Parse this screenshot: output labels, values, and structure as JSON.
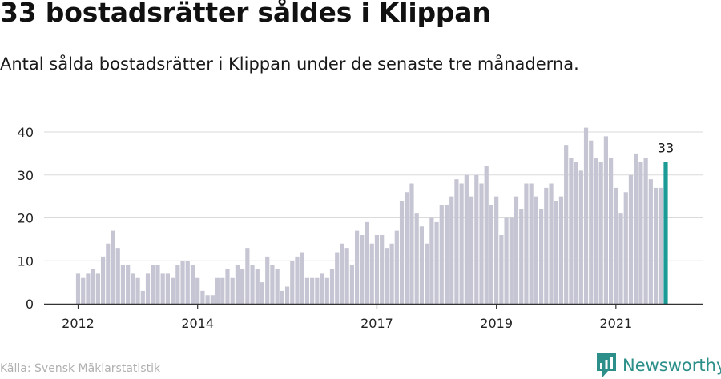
{
  "header": {
    "title": "33 bostadsrätter såldes i Klippan",
    "subtitle": "Antal sålda bostadsrätter i Klippan under de senaste tre månaderna."
  },
  "footer": {
    "source": "Källa: Svensk Mäklarstatistik",
    "brand": "Newsworthy"
  },
  "colors": {
    "bar": "#c6c5d3",
    "highlight": "#1a9b96",
    "grid": "#dadada",
    "axis": "#333333",
    "brand": "#2c8f8a"
  },
  "chart_data": {
    "type": "bar",
    "title": "33 bostadsrätter såldes i Klippan",
    "ylim": [
      0,
      42
    ],
    "yticks": [
      0,
      10,
      20,
      30,
      40
    ],
    "xticks": [
      {
        "index": 0,
        "label": "2012"
      },
      {
        "index": 24,
        "label": "2014"
      },
      {
        "index": 60,
        "label": "2017"
      },
      {
        "index": 84,
        "label": "2019"
      },
      {
        "index": 108,
        "label": "2021"
      }
    ],
    "highlight_label": "33",
    "values": [
      7,
      6,
      7,
      8,
      7,
      11,
      14,
      17,
      13,
      9,
      9,
      7,
      6,
      3,
      7,
      9,
      9,
      7,
      7,
      6,
      9,
      10,
      10,
      9,
      6,
      3,
      2,
      2,
      6,
      6,
      8,
      6,
      9,
      8,
      13,
      9,
      8,
      5,
      11,
      9,
      8,
      3,
      4,
      10,
      11,
      12,
      6,
      6,
      6,
      7,
      6,
      8,
      12,
      14,
      13,
      9,
      17,
      16,
      19,
      14,
      16,
      16,
      13,
      14,
      17,
      24,
      26,
      28,
      21,
      18,
      14,
      20,
      19,
      23,
      23,
      25,
      29,
      28,
      30,
      25,
      30,
      28,
      32,
      23,
      25,
      16,
      20,
      20,
      25,
      22,
      28,
      28,
      25,
      22,
      27,
      28,
      24,
      25,
      37,
      34,
      33,
      31,
      41,
      38,
      34,
      33,
      39,
      34,
      27,
      21,
      26,
      30,
      35,
      33,
      34,
      29,
      27,
      27,
      33
    ]
  }
}
